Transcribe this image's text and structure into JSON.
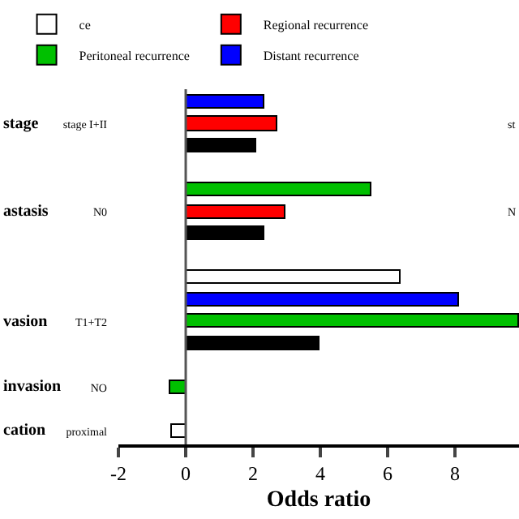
{
  "chart_data": {
    "type": "bar",
    "orientation": "horizontal",
    "xlabel": "Odds ratio",
    "categories": [
      null,
      "stage I+II",
      null,
      null,
      null,
      "N0",
      null,
      null,
      null,
      null,
      "T1+T2",
      null,
      null,
      "NO",
      null,
      "proximal"
    ],
    "series": [
      {
        "name": "ce",
        "color": "#ffffff",
        "values": [
          null,
          null,
          null,
          null,
          null,
          null,
          null,
          null,
          6.4,
          null,
          null,
          null,
          null,
          null,
          null,
          -0.4
        ]
      },
      {
        "name": "Regional recurrence",
        "color": "#ff0000",
        "values": [
          null,
          2.7,
          null,
          null,
          null,
          2.95,
          null,
          null,
          null,
          null,
          null,
          null,
          null,
          null,
          null,
          null
        ]
      },
      {
        "name": "Peritoneal recurrence",
        "color": "#00c000",
        "values": [
          null,
          null,
          null,
          null,
          5.5,
          null,
          null,
          null,
          null,
          null,
          9.9,
          null,
          null,
          -0.45,
          null,
          null
        ]
      },
      {
        "name": "Distant recurrence",
        "color": "#0000ff",
        "values": [
          2.35,
          null,
          null,
          null,
          null,
          null,
          null,
          null,
          null,
          8.1,
          null,
          null,
          null,
          null,
          null,
          null
        ]
      },
      {
        "color": "#000000",
        "values": [
          null,
          null,
          2.1,
          null,
          null,
          null,
          2.35,
          null,
          null,
          null,
          null,
          3.95,
          null,
          null,
          null,
          null
        ]
      }
    ],
    "xlim": [
      -2,
      9.9
    ],
    "xticks": [
      -2,
      0,
      2,
      4,
      6,
      8
    ],
    "ref_lines": [
      {
        "axis": "x",
        "value": 0,
        "color": "#555555"
      }
    ],
    "annotations": [
      "stage",
      "astasis",
      "vasion",
      "invasion",
      "cation",
      "st",
      "N"
    ],
    "legend": "top"
  }
}
